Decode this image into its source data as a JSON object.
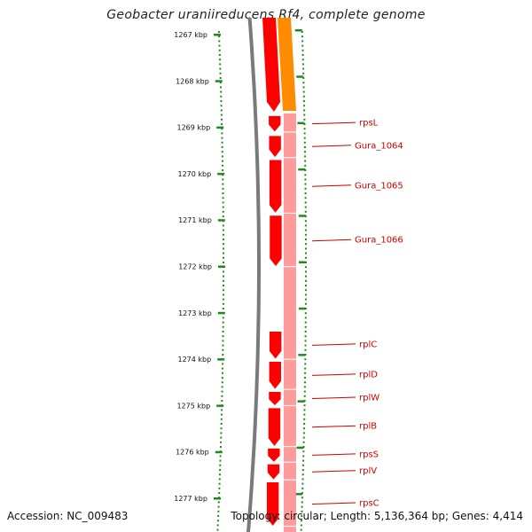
{
  "title": "Geobacter uraniireducens Rf4, complete genome",
  "ruler": {
    "ticks": [
      {
        "label": "1267 kbp",
        "kbp": 1267
      },
      {
        "label": "1268 kbp",
        "kbp": 1268
      },
      {
        "label": "1269 kbp",
        "kbp": 1269
      },
      {
        "label": "1270 kbp",
        "kbp": 1270
      },
      {
        "label": "1271 kbp",
        "kbp": 1271
      },
      {
        "label": "1272 kbp",
        "kbp": 1272
      },
      {
        "label": "1273 kbp",
        "kbp": 1273
      },
      {
        "label": "1274 kbp",
        "kbp": 1274
      },
      {
        "label": "1275 kbp",
        "kbp": 1275
      },
      {
        "label": "1276 kbp",
        "kbp": 1276
      },
      {
        "label": "1277 kbp",
        "kbp": 1277
      }
    ]
  },
  "genes": [
    {
      "name": "rpsL",
      "start_kbp": 1268.75,
      "end_kbp": 1269.1
    },
    {
      "name": "Gura_1064",
      "start_kbp": 1269.18,
      "end_kbp": 1269.65
    },
    {
      "name": "Gura_1065",
      "start_kbp": 1269.7,
      "end_kbp": 1270.85
    },
    {
      "name": "Gura_1066",
      "start_kbp": 1270.9,
      "end_kbp": 1272.0
    },
    {
      "name": "rplC",
      "start_kbp": 1273.4,
      "end_kbp": 1274.0
    },
    {
      "name": "rplD",
      "start_kbp": 1274.05,
      "end_kbp": 1274.65
    },
    {
      "name": "rplW",
      "start_kbp": 1274.7,
      "end_kbp": 1275.0
    },
    {
      "name": "rplB",
      "start_kbp": 1275.05,
      "end_kbp": 1275.88
    },
    {
      "name": "rpsS",
      "start_kbp": 1275.92,
      "end_kbp": 1276.22
    },
    {
      "name": "rplV",
      "start_kbp": 1276.26,
      "end_kbp": 1276.6
    },
    {
      "name": "rpsC",
      "start_kbp": 1276.65,
      "end_kbp": 1277.6
    }
  ],
  "colors": {
    "backbone": "#7a7a7a",
    "cds_forward": "#ff0000",
    "cds_shadow": "#ff8a8a",
    "orange_feature": "#ff8c00",
    "ruler_ticks": "#1f8a1f",
    "gene_label": "#cc0000"
  },
  "footer": {
    "accession": "Accession: NC_009483",
    "summary": "Topology: circular; Length: 5,136,364 bp; Genes: 4,414"
  }
}
